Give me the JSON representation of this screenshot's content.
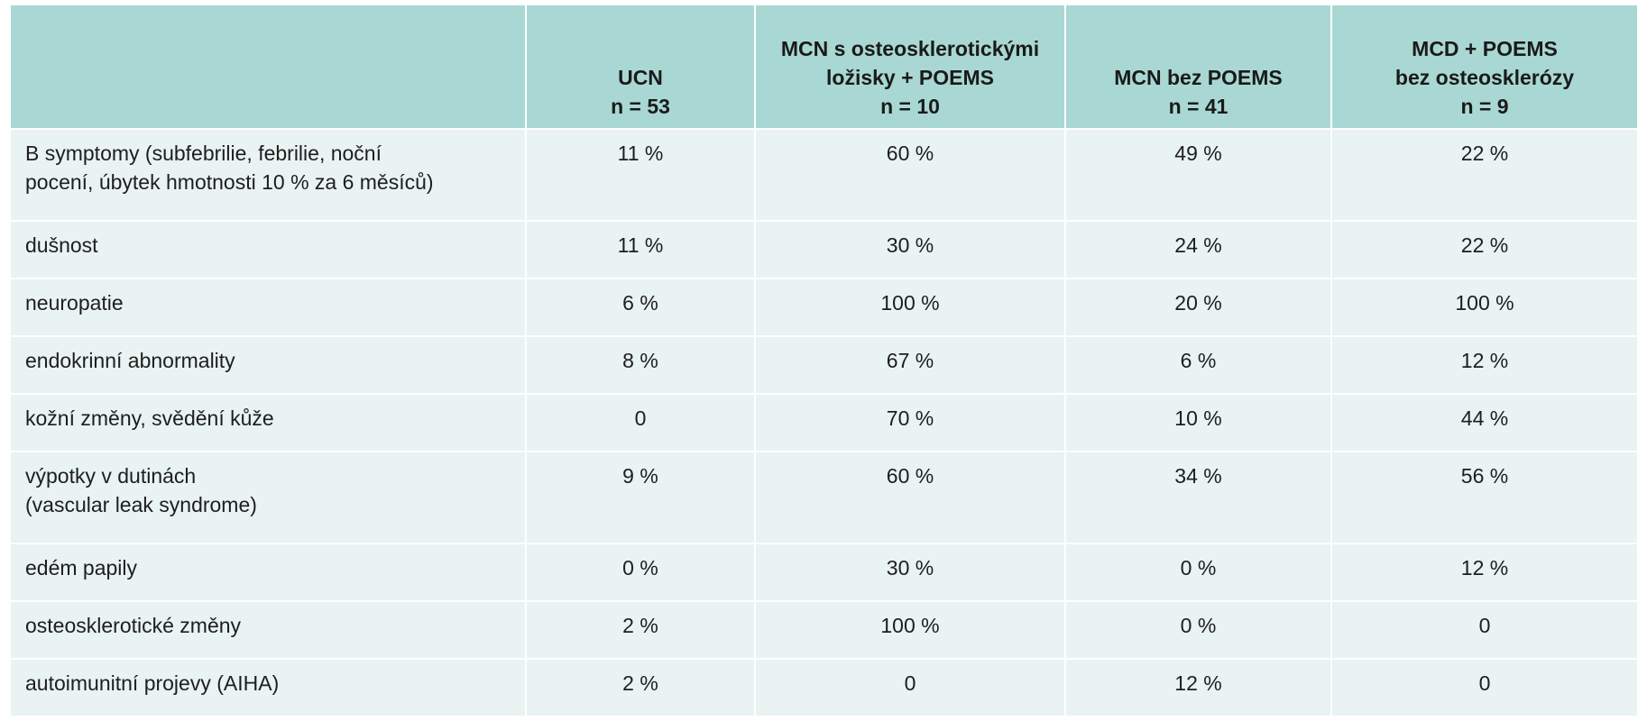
{
  "table": {
    "headers": [
      {
        "lines": [
          ""
        ]
      },
      {
        "lines": [
          "UCN",
          "n = 53"
        ]
      },
      {
        "lines": [
          "MCN s osteosklerotickými",
          "ložisky + POEMS",
          "n = 10"
        ]
      },
      {
        "lines": [
          "MCN bez POEMS",
          "n = 41"
        ]
      },
      {
        "lines": [
          "MCD + POEMS",
          "bez osteosklerózy",
          "n = 9"
        ]
      }
    ],
    "rows": [
      {
        "label_lines": [
          "B symptomy (subfebrilie, febrilie, noční",
          "pocení, úbytek hmotnosti 10 % za 6 měsíců)"
        ],
        "values": [
          "11 %",
          "60 %",
          "49 %",
          "22 %"
        ]
      },
      {
        "label_lines": [
          "dušnost"
        ],
        "values": [
          "11 %",
          "30 %",
          "24 %",
          "22 %"
        ]
      },
      {
        "label_lines": [
          "neuropatie"
        ],
        "values": [
          "6 %",
          "100 %",
          "20 %",
          "100 %"
        ]
      },
      {
        "label_lines": [
          "endokrinní abnormality"
        ],
        "values": [
          "8 %",
          "67 %",
          "6 %",
          "12 %"
        ]
      },
      {
        "label_lines": [
          "kožní změny, svědění kůže"
        ],
        "values": [
          "0",
          "70 %",
          "10 %",
          "44 %"
        ]
      },
      {
        "label_lines": [
          "výpotky v dutinách",
          "(vascular leak syndrome)"
        ],
        "values": [
          "9 %",
          "60 %",
          "34 %",
          "56 %"
        ]
      },
      {
        "label_lines": [
          "edém papily"
        ],
        "values": [
          "0 %",
          "30 %",
          "0 %",
          "12 %"
        ]
      },
      {
        "label_lines": [
          "osteosklerotické změny"
        ],
        "values": [
          "2 %",
          "100 %",
          "0 %",
          "0"
        ]
      },
      {
        "label_lines": [
          "autoimunitní projevy (AIHA)"
        ],
        "values": [
          "2 %",
          "0",
          "12 %",
          "0"
        ]
      }
    ]
  },
  "colors": {
    "header_bg": "#a9d8d4",
    "row_bg": "#e8f3f2"
  }
}
